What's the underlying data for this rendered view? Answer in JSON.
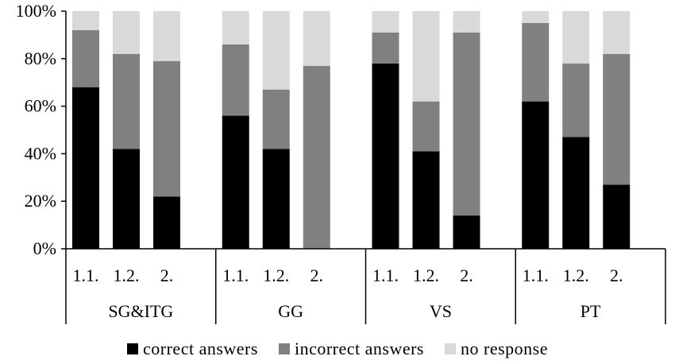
{
  "chart_data": {
    "type": "bar",
    "stacked": true,
    "percent": true,
    "title": "",
    "xlabel": "",
    "ylabel": "",
    "ylim": [
      0,
      100
    ],
    "yticks": [
      "0%",
      "20%",
      "40%",
      "60%",
      "80%",
      "100%"
    ],
    "groups": [
      {
        "label": "SG&ITG",
        "categories": [
          "1.1.",
          "1.2.",
          "2."
        ]
      },
      {
        "label": "GG",
        "categories": [
          "1.1.",
          "1.2.",
          "2."
        ]
      },
      {
        "label": "VS",
        "categories": [
          "1.1.",
          "1.2.",
          "2."
        ]
      },
      {
        "label": "PT",
        "categories": [
          "1.1.",
          "1.2.",
          "2."
        ]
      }
    ],
    "series": [
      {
        "name": "correct answers",
        "color": "#000000",
        "values": [
          68,
          42,
          22,
          56,
          42,
          0,
          78,
          41,
          14,
          62,
          47,
          27
        ]
      },
      {
        "name": "incorrect answers",
        "color": "#808080",
        "values": [
          24,
          40,
          57,
          30,
          25,
          77,
          13,
          21,
          77,
          33,
          31,
          55
        ]
      },
      {
        "name": "no response",
        "color": "#d9d9d9",
        "values": [
          8,
          18,
          21,
          14,
          33,
          23,
          9,
          38,
          9,
          5,
          22,
          18
        ]
      }
    ],
    "legend_position": "bottom",
    "grid": false
  }
}
